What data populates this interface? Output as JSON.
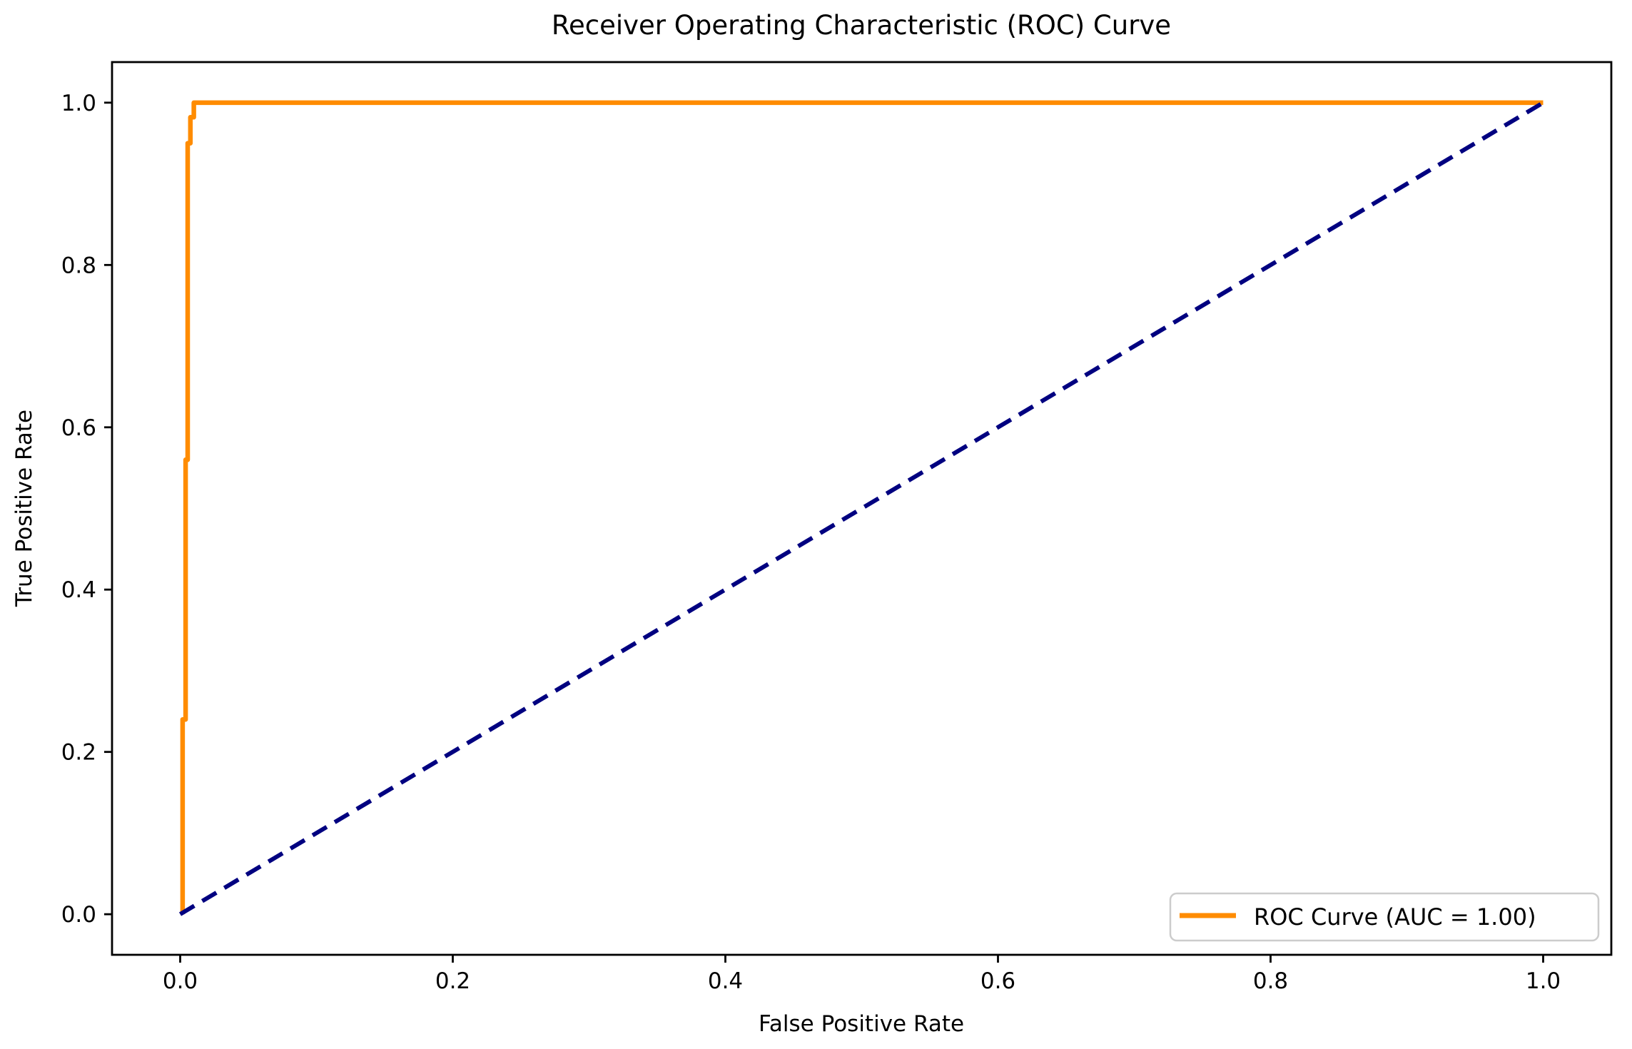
{
  "figure": {
    "background": "#ffffff"
  },
  "chart_data": {
    "type": "line",
    "title": "Receiver Operating Characteristic (ROC) Curve",
    "xlabel": "False Positive Rate",
    "ylabel": "True Positive Rate",
    "xlim": [
      -0.05,
      1.05
    ],
    "ylim": [
      -0.05,
      1.05
    ],
    "x_ticks": [
      0.0,
      0.2,
      0.4,
      0.6,
      0.8,
      1.0
    ],
    "y_ticks": [
      0.0,
      0.2,
      0.4,
      0.6,
      0.8,
      1.0
    ],
    "tick_format": "0.1f",
    "grid": false,
    "axis_color": "#000000",
    "text_color": "#000000",
    "series": [
      {
        "name": "ROC Curve (AUC = 1.00)",
        "color": "#ff8c00",
        "line_style": "solid",
        "line_width": 6.5,
        "in_legend": true,
        "points": [
          [
            0.0018,
            0.0
          ],
          [
            0.0018,
            0.24
          ],
          [
            0.004,
            0.24
          ],
          [
            0.004,
            0.56
          ],
          [
            0.0055,
            0.56
          ],
          [
            0.0055,
            0.95
          ],
          [
            0.0075,
            0.95
          ],
          [
            0.0075,
            0.982
          ],
          [
            0.01,
            0.982
          ],
          [
            0.01,
            1.0
          ],
          [
            1.0,
            1.0
          ]
        ]
      },
      {
        "name": "Chance diagonal",
        "color": "#000080",
        "line_style": "dashed",
        "line_width": 6,
        "in_legend": false,
        "points": [
          [
            0.0,
            0.0
          ],
          [
            1.0,
            1.0
          ]
        ]
      }
    ],
    "legend": {
      "position": "lower right",
      "entries": [
        {
          "label": "ROC Curve (AUC = 1.00)",
          "color": "#ff8c00"
        }
      ],
      "border_color": "#cccccc",
      "background": "#ffffff"
    }
  }
}
